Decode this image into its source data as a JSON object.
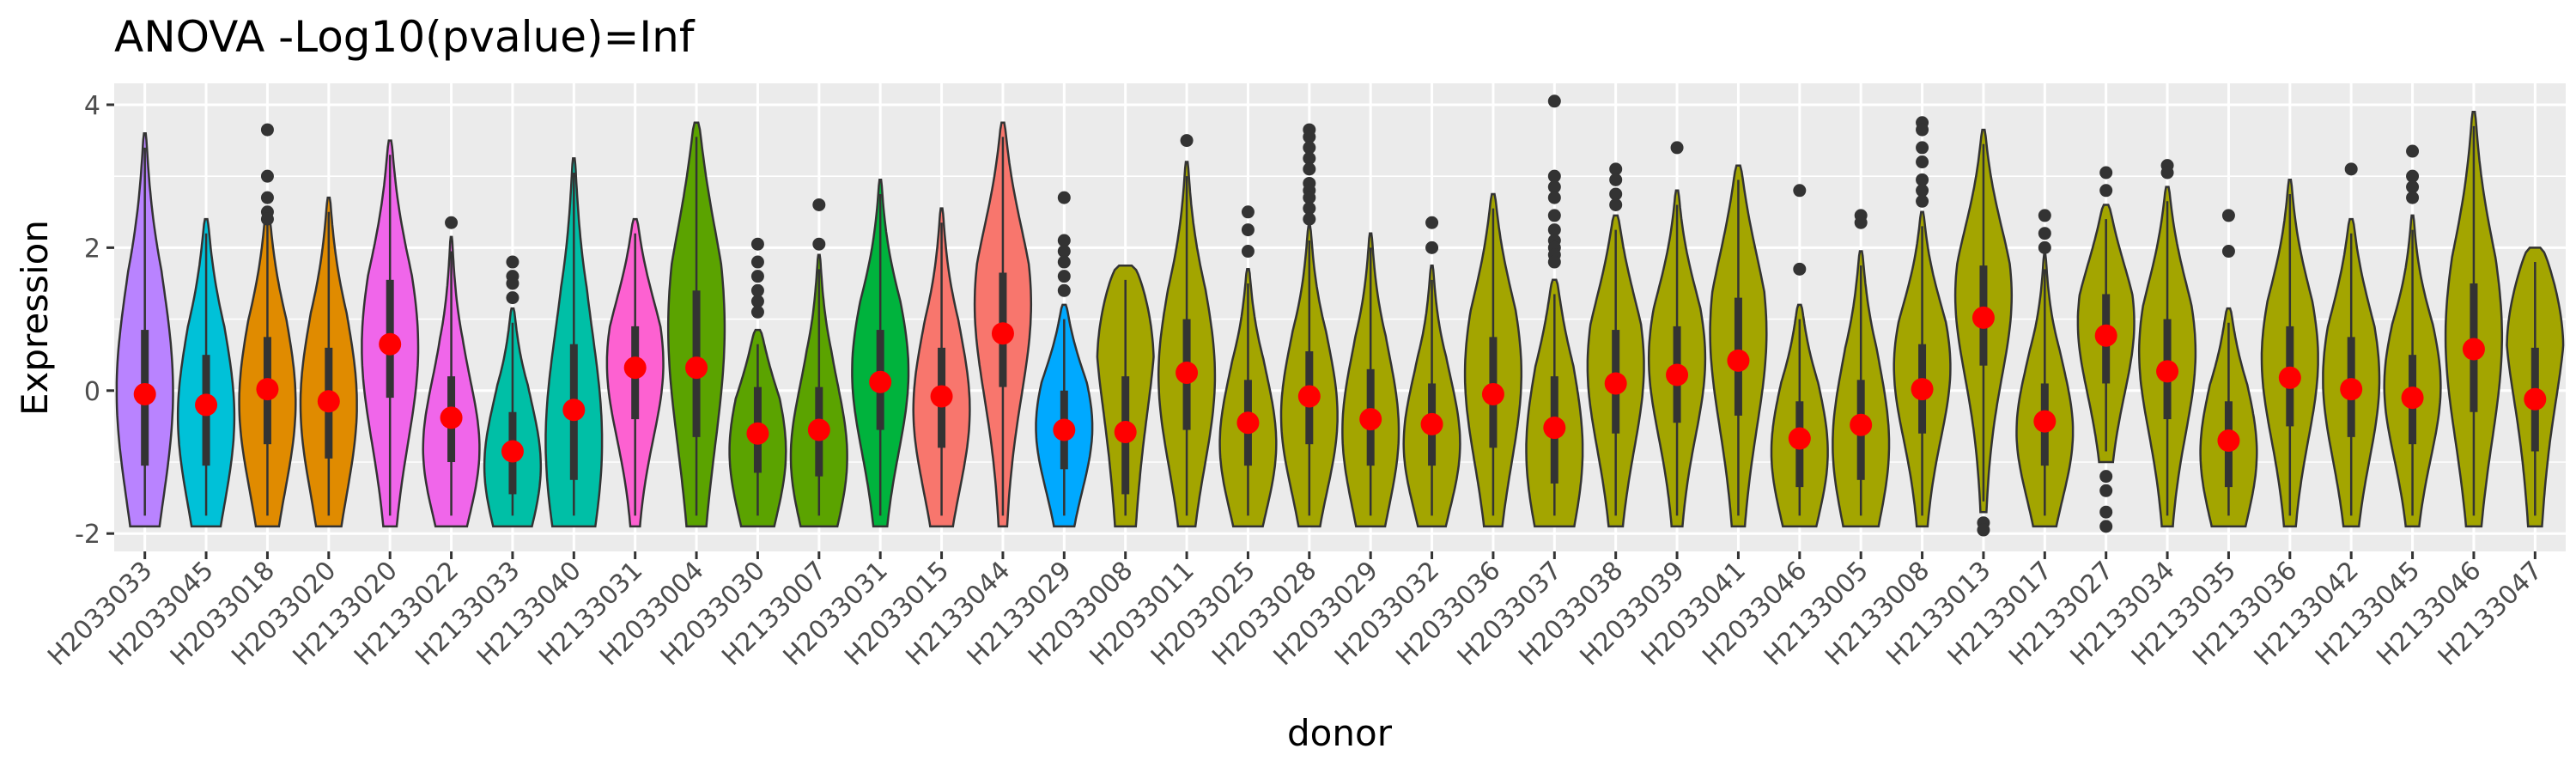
{
  "chart_data": {
    "type": "violin",
    "title": "ANOVA -Log10(pvalue)=Inf",
    "xlabel": "donor",
    "ylabel": "Expression",
    "ylim": [
      -2.25,
      4.3
    ],
    "yticks": [
      -2,
      0,
      2,
      4
    ],
    "ytick_labels": [
      "-2",
      "0",
      "2",
      "4"
    ],
    "grid": true,
    "legend": "none",
    "colors": {
      "panel_background": "#ebebeb",
      "gridline": "#ffffff",
      "violin_outline": "#333333",
      "boxplot": "#333333",
      "mean_point": "#ff0000",
      "outlier": "#333333"
    },
    "series": [
      {
        "category": "H2033033",
        "color": "#b983ff",
        "mean": -0.05,
        "min": -1.9,
        "max": 3.6,
        "q1": -1.05,
        "median": -0.05,
        "q3": 0.85,
        "peak": 0.0,
        "skew": 0.0,
        "outliers": []
      },
      {
        "category": "H2033045",
        "color": "#00c1d8",
        "mean": -0.2,
        "min": -1.9,
        "max": 2.4,
        "q1": -1.05,
        "median": -0.2,
        "q3": 0.5,
        "peak": -0.4,
        "skew": 0.0,
        "outliers": []
      },
      {
        "category": "H2033018",
        "color": "#e08b00",
        "mean": 0.02,
        "min": -1.9,
        "max": 2.55,
        "q1": -0.75,
        "median": 0.0,
        "q3": 0.75,
        "peak": -0.2,
        "skew": 0.0,
        "outliers": [
          3.65,
          3.0,
          2.7,
          2.5,
          2.4
        ]
      },
      {
        "category": "H2033020",
        "color": "#e08b00",
        "mean": -0.15,
        "min": -1.9,
        "max": 2.7,
        "q1": -0.95,
        "median": -0.15,
        "q3": 0.6,
        "peak": -0.2,
        "skew": 0.0,
        "outliers": []
      },
      {
        "category": "H2133020",
        "color": "#f066ea",
        "mean": 0.65,
        "min": -1.9,
        "max": 3.5,
        "q1": -0.1,
        "median": 0.65,
        "q3": 1.55,
        "peak": 0.6,
        "skew": 0.0,
        "outliers": []
      },
      {
        "category": "H2133022",
        "color": "#f066ea",
        "mean": -0.38,
        "min": -1.9,
        "max": 2.15,
        "q1": -1.0,
        "median": -0.35,
        "q3": 0.2,
        "peak": -0.9,
        "skew": 0.0,
        "outliers": [
          2.35
        ]
      },
      {
        "category": "H2133033",
        "color": "#00bfa6",
        "mean": -0.85,
        "min": -1.9,
        "max": 1.15,
        "q1": -1.45,
        "median": -0.85,
        "q3": -0.3,
        "peak": -1.1,
        "skew": 0.0,
        "outliers": [
          1.8,
          1.6,
          1.5,
          1.3
        ]
      },
      {
        "category": "H2133040",
        "color": "#00bfa6",
        "mean": -0.27,
        "min": -1.9,
        "max": 3.25,
        "q1": -1.25,
        "median": -0.3,
        "q3": 0.65,
        "peak": -0.8,
        "skew": 0.0,
        "outliers": []
      },
      {
        "category": "H2133031",
        "color": "#fd61d1",
        "mean": 0.32,
        "min": -1.9,
        "max": 2.4,
        "q1": -0.4,
        "median": 0.3,
        "q3": 0.9,
        "peak": 0.4,
        "skew": 0.0,
        "outliers": []
      },
      {
        "category": "H2033004",
        "color": "#5ba300",
        "mean": 0.32,
        "min": -1.9,
        "max": 3.75,
        "q1": -0.65,
        "median": 0.3,
        "q3": 1.4,
        "peak": 1.0,
        "skew": 0.0,
        "outliers": []
      },
      {
        "category": "H2033030",
        "color": "#5ba300",
        "mean": -0.6,
        "min": -1.9,
        "max": 0.85,
        "q1": -1.15,
        "median": -0.6,
        "q3": 0.05,
        "peak": -0.9,
        "skew": 0.0,
        "outliers": [
          2.05,
          1.8,
          1.6,
          1.4,
          1.25,
          1.1
        ]
      },
      {
        "category": "H2133007",
        "color": "#5ba300",
        "mean": -0.55,
        "min": -1.9,
        "max": 1.9,
        "q1": -1.2,
        "median": -0.55,
        "q3": 0.05,
        "peak": -1.0,
        "skew": 0.0,
        "outliers": [
          2.6,
          2.05
        ]
      },
      {
        "category": "H2033031",
        "color": "#00b33d",
        "mean": 0.12,
        "min": -1.9,
        "max": 2.95,
        "q1": -0.55,
        "median": 0.1,
        "q3": 0.85,
        "peak": 0.3,
        "skew": 0.0,
        "outliers": []
      },
      {
        "category": "H2033015",
        "color": "#f8766d",
        "mean": -0.08,
        "min": -1.9,
        "max": 2.55,
        "q1": -0.8,
        "median": -0.1,
        "q3": 0.6,
        "peak": -0.3,
        "skew": 0.0,
        "outliers": []
      },
      {
        "category": "H2133044",
        "color": "#f8766d",
        "mean": 0.8,
        "min": -1.9,
        "max": 3.75,
        "q1": 0.05,
        "median": 0.8,
        "q3": 1.65,
        "peak": 1.3,
        "skew": 0.0,
        "outliers": []
      },
      {
        "category": "H2133029",
        "color": "#00a9ff",
        "mean": -0.55,
        "min": -1.9,
        "max": 1.2,
        "q1": -1.1,
        "median": -0.55,
        "q3": 0.0,
        "peak": -0.5,
        "skew": 0.0,
        "outliers": [
          2.7,
          2.1,
          1.95,
          1.8,
          1.6,
          1.4
        ]
      },
      {
        "category": "H2033008",
        "color": "#a3a500",
        "mean": -0.58,
        "min": -1.9,
        "max": 1.75,
        "q1": -1.45,
        "median": -0.6,
        "q3": 0.2,
        "peak": 1.2,
        "skew": 0.0,
        "outliers": []
      },
      {
        "category": "H2033011",
        "color": "#a3a500",
        "mean": 0.25,
        "min": -1.9,
        "max": 3.2,
        "q1": -0.55,
        "median": 0.25,
        "q3": 1.0,
        "peak": 0.2,
        "skew": 0.0,
        "outliers": [
          3.5
        ]
      },
      {
        "category": "H2033025",
        "color": "#a3a500",
        "mean": -0.45,
        "min": -1.9,
        "max": 1.7,
        "q1": -1.05,
        "median": -0.45,
        "q3": 0.15,
        "peak": -0.8,
        "skew": 0.0,
        "outliers": [
          2.5,
          2.25,
          1.95
        ]
      },
      {
        "category": "H2033028",
        "color": "#a3a500",
        "mean": -0.08,
        "min": -1.9,
        "max": 2.3,
        "q1": -0.75,
        "median": -0.1,
        "q3": 0.55,
        "peak": -0.4,
        "skew": 0.0,
        "outliers": [
          3.65,
          3.55,
          3.4,
          3.25,
          3.1,
          2.9,
          2.8,
          2.7,
          2.55,
          2.4
        ]
      },
      {
        "category": "H2033029",
        "color": "#a3a500",
        "mean": -0.4,
        "min": -1.9,
        "max": 2.2,
        "q1": -1.05,
        "median": -0.4,
        "q3": 0.3,
        "peak": -0.6,
        "skew": 0.0,
        "outliers": []
      },
      {
        "category": "H2033032",
        "color": "#a3a500",
        "mean": -0.47,
        "min": -1.9,
        "max": 1.75,
        "q1": -1.05,
        "median": -0.45,
        "q3": 0.1,
        "peak": -0.8,
        "skew": 0.0,
        "outliers": [
          2.35,
          2.0
        ]
      },
      {
        "category": "H2033036",
        "color": "#a3a500",
        "mean": -0.05,
        "min": -1.9,
        "max": 2.75,
        "q1": -0.8,
        "median": -0.05,
        "q3": 0.75,
        "peak": 0.3,
        "skew": 0.0,
        "outliers": []
      },
      {
        "category": "H2033037",
        "color": "#a3a500",
        "mean": -0.52,
        "min": -1.9,
        "max": 1.55,
        "q1": -1.3,
        "median": -0.5,
        "q3": 0.2,
        "peak": -0.9,
        "skew": 0.0,
        "outliers": [
          4.05,
          3.0,
          2.85,
          2.7,
          2.45,
          2.25,
          2.1,
          2.0,
          1.9,
          1.8
        ]
      },
      {
        "category": "H2033038",
        "color": "#a3a500",
        "mean": 0.1,
        "min": -1.9,
        "max": 2.45,
        "q1": -0.6,
        "median": 0.1,
        "q3": 0.85,
        "peak": 0.4,
        "skew": 0.0,
        "outliers": [
          3.1,
          2.95,
          2.75,
          2.6
        ]
      },
      {
        "category": "H2033039",
        "color": "#a3a500",
        "mean": 0.22,
        "min": -1.9,
        "max": 2.8,
        "q1": -0.45,
        "median": 0.2,
        "q3": 0.9,
        "peak": 0.5,
        "skew": 0.0,
        "outliers": [
          3.4
        ]
      },
      {
        "category": "H2033041",
        "color": "#a3a500",
        "mean": 0.42,
        "min": -1.9,
        "max": 3.15,
        "q1": -0.35,
        "median": 0.4,
        "q3": 1.3,
        "peak": 0.9,
        "skew": 0.0,
        "outliers": []
      },
      {
        "category": "H2033046",
        "color": "#a3a500",
        "mean": -0.67,
        "min": -1.9,
        "max": 1.2,
        "q1": -1.35,
        "median": -0.65,
        "q3": -0.15,
        "peak": -0.9,
        "skew": 0.0,
        "outliers": [
          2.8,
          1.7
        ]
      },
      {
        "category": "H2133005",
        "color": "#a3a500",
        "mean": -0.48,
        "min": -1.9,
        "max": 1.95,
        "q1": -1.25,
        "median": -0.5,
        "q3": 0.15,
        "peak": -0.8,
        "skew": 0.0,
        "outliers": [
          2.45,
          2.35
        ]
      },
      {
        "category": "H2133008",
        "color": "#a3a500",
        "mean": 0.02,
        "min": -1.9,
        "max": 2.5,
        "q1": -0.6,
        "median": 0.0,
        "q3": 0.65,
        "peak": 0.4,
        "skew": 0.0,
        "outliers": [
          3.75,
          3.65,
          3.4,
          3.2,
          2.95,
          2.8,
          2.65
        ]
      },
      {
        "category": "H2133013",
        "color": "#a3a500",
        "mean": 1.02,
        "min": -1.7,
        "max": 3.65,
        "q1": 0.35,
        "median": 1.0,
        "q3": 1.75,
        "peak": 1.4,
        "skew": 0.0,
        "outliers": [
          -1.85,
          -1.95
        ]
      },
      {
        "category": "H2133017",
        "color": "#a3a500",
        "mean": -0.43,
        "min": -1.9,
        "max": 1.9,
        "q1": -1.05,
        "median": -0.45,
        "q3": 0.1,
        "peak": -0.6,
        "skew": 0.0,
        "outliers": [
          2.45,
          2.2,
          2.0
        ]
      },
      {
        "category": "H2133027",
        "color": "#a3a500",
        "mean": 0.77,
        "min": -1.0,
        "max": 2.6,
        "q1": 0.1,
        "median": 0.75,
        "q3": 1.35,
        "peak": 1.0,
        "skew": 0.0,
        "outliers": [
          3.05,
          2.8,
          -1.2,
          -1.4,
          -1.7,
          -1.9
        ]
      },
      {
        "category": "H2133034",
        "color": "#a3a500",
        "mean": 0.27,
        "min": -1.9,
        "max": 2.85,
        "q1": -0.4,
        "median": 0.25,
        "q3": 1.0,
        "peak": 0.6,
        "skew": 0.0,
        "outliers": [
          3.15,
          3.05
        ]
      },
      {
        "category": "H2133035",
        "color": "#a3a500",
        "mean": -0.7,
        "min": -1.9,
        "max": 1.15,
        "q1": -1.35,
        "median": -0.7,
        "q3": -0.15,
        "peak": -0.9,
        "skew": 0.0,
        "outliers": [
          2.45,
          1.95
        ]
      },
      {
        "category": "H2133036",
        "color": "#a3a500",
        "mean": 0.18,
        "min": -1.9,
        "max": 2.95,
        "q1": -0.5,
        "median": 0.2,
        "q3": 0.9,
        "peak": 0.5,
        "skew": 0.0,
        "outliers": []
      },
      {
        "category": "H2133042",
        "color": "#a3a500",
        "mean": 0.02,
        "min": -1.9,
        "max": 2.4,
        "q1": -0.65,
        "median": 0.0,
        "q3": 0.75,
        "peak": 0.2,
        "skew": 0.0,
        "outliers": [
          3.1
        ]
      },
      {
        "category": "H2133045",
        "color": "#a3a500",
        "mean": -0.1,
        "min": -1.9,
        "max": 2.45,
        "q1": -0.75,
        "median": -0.1,
        "q3": 0.5,
        "peak": 0.1,
        "skew": 0.0,
        "outliers": [
          3.35,
          3.0,
          2.85,
          2.7
        ]
      },
      {
        "category": "H2133046",
        "color": "#a3a500",
        "mean": 0.58,
        "min": -1.9,
        "max": 3.9,
        "q1": -0.3,
        "median": 0.55,
        "q3": 1.5,
        "peak": 0.8,
        "skew": 0.0,
        "outliers": []
      },
      {
        "category": "H2133047",
        "color": "#a3a500",
        "mean": -0.12,
        "min": -1.9,
        "max": 2.0,
        "q1": -0.85,
        "median": -0.1,
        "q3": 0.6,
        "peak": 1.2,
        "skew": 0.0,
        "outliers": []
      }
    ]
  }
}
